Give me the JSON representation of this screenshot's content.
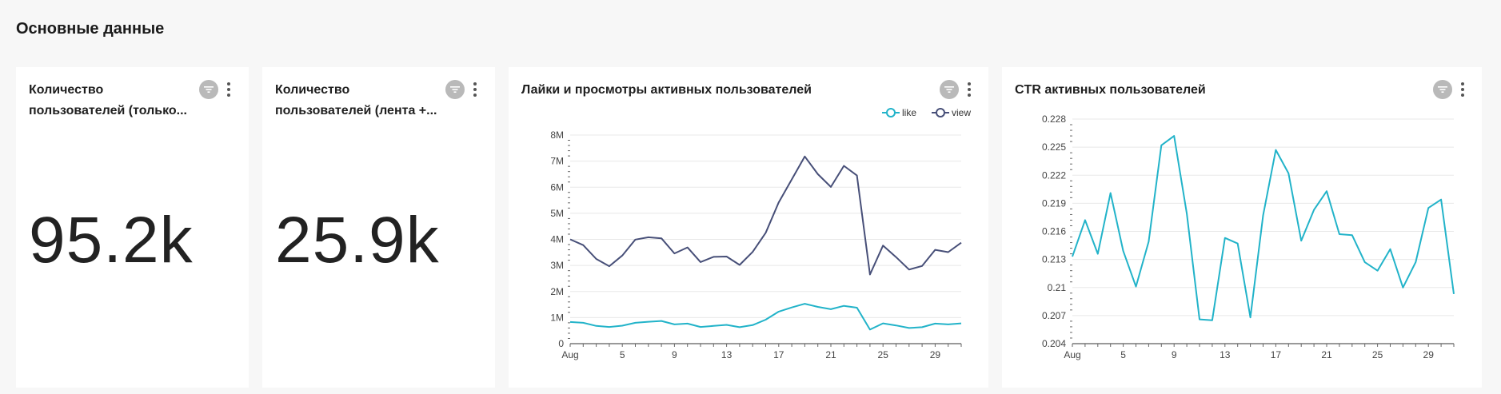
{
  "page": {
    "title": "Основные данные"
  },
  "cards": {
    "users_feed_only": {
      "title_line1": "Количество",
      "title_line2": "пользователей (только...",
      "value": "95.2k"
    },
    "users_feed_msg": {
      "title_line1": "Количество",
      "title_line2": "пользователей (лента +...",
      "value": "25.9k"
    },
    "likes_views": {
      "title": "Лайки и просмотры активных пользователей"
    },
    "ctr": {
      "title": "CTR активных пользователей"
    }
  },
  "icons": {
    "filter": "filter-icon",
    "menu": "more-vertical-icon"
  },
  "colors": {
    "like": "#22b3c9",
    "view": "#474f78",
    "grid": "#e8e8e8",
    "axis": "#333333"
  },
  "chart_data": [
    {
      "type": "line",
      "title": "Лайки и просмотры активных пользователей",
      "x": [
        1,
        2,
        3,
        4,
        5,
        6,
        7,
        8,
        9,
        10,
        11,
        12,
        13,
        14,
        15,
        16,
        17,
        18,
        19,
        20,
        21,
        22,
        23,
        24,
        25,
        26,
        27,
        28,
        29,
        30,
        31
      ],
      "x_tick_labels": [
        "Aug",
        "5",
        "9",
        "13",
        "17",
        "21",
        "25",
        "29"
      ],
      "x_tick_values": [
        1,
        5,
        9,
        13,
        17,
        21,
        25,
        29
      ],
      "y_tick_labels": [
        "0",
        "1M",
        "2M",
        "3M",
        "4M",
        "5M",
        "6M",
        "7M",
        "8M"
      ],
      "ylim": [
        0,
        8000000
      ],
      "legend": "top-right",
      "series": [
        {
          "name": "like",
          "values": [
            830000,
            800000,
            680000,
            640000,
            690000,
            800000,
            840000,
            870000,
            740000,
            770000,
            640000,
            680000,
            720000,
            630000,
            710000,
            920000,
            1230000,
            1390000,
            1530000,
            1410000,
            1320000,
            1450000,
            1380000,
            540000,
            780000,
            700000,
            600000,
            630000,
            770000,
            740000,
            780000
          ]
        },
        {
          "name": "view",
          "values": [
            4000000,
            3780000,
            3250000,
            2970000,
            3380000,
            3990000,
            4080000,
            4040000,
            3460000,
            3690000,
            3130000,
            3330000,
            3340000,
            3020000,
            3520000,
            4250000,
            5420000,
            6300000,
            7180000,
            6500000,
            6010000,
            6820000,
            6450000,
            2650000,
            3760000,
            3320000,
            2840000,
            2980000,
            3600000,
            3510000,
            3870000
          ]
        }
      ]
    },
    {
      "type": "line",
      "title": "CTR активных пользователей",
      "x": [
        1,
        2,
        3,
        4,
        5,
        6,
        7,
        8,
        9,
        10,
        11,
        12,
        13,
        14,
        15,
        16,
        17,
        18,
        19,
        20,
        21,
        22,
        23,
        24,
        25,
        26,
        27,
        28,
        29,
        30,
        31
      ],
      "x_tick_labels": [
        "Aug",
        "5",
        "9",
        "13",
        "17",
        "21",
        "25",
        "29"
      ],
      "x_tick_values": [
        1,
        5,
        9,
        13,
        17,
        21,
        25,
        29
      ],
      "y_tick_labels": [
        "0.204",
        "0.207",
        "0.21",
        "0.213",
        "0.216",
        "0.219",
        "0.222",
        "0.225",
        "0.228"
      ],
      "ylim": [
        0.204,
        0.228
      ],
      "series": [
        {
          "name": "ctr",
          "values": [
            0.2133,
            0.2172,
            0.2136,
            0.2201,
            0.2139,
            0.2101,
            0.2149,
            0.2252,
            0.2262,
            0.2179,
            0.2066,
            0.2065,
            0.2153,
            0.2147,
            0.2068,
            0.2177,
            0.2247,
            0.2222,
            0.215,
            0.2183,
            0.2203,
            0.2157,
            0.2156,
            0.2127,
            0.2118,
            0.2141,
            0.21,
            0.2127,
            0.2185,
            0.2194,
            0.2093
          ]
        }
      ]
    }
  ]
}
